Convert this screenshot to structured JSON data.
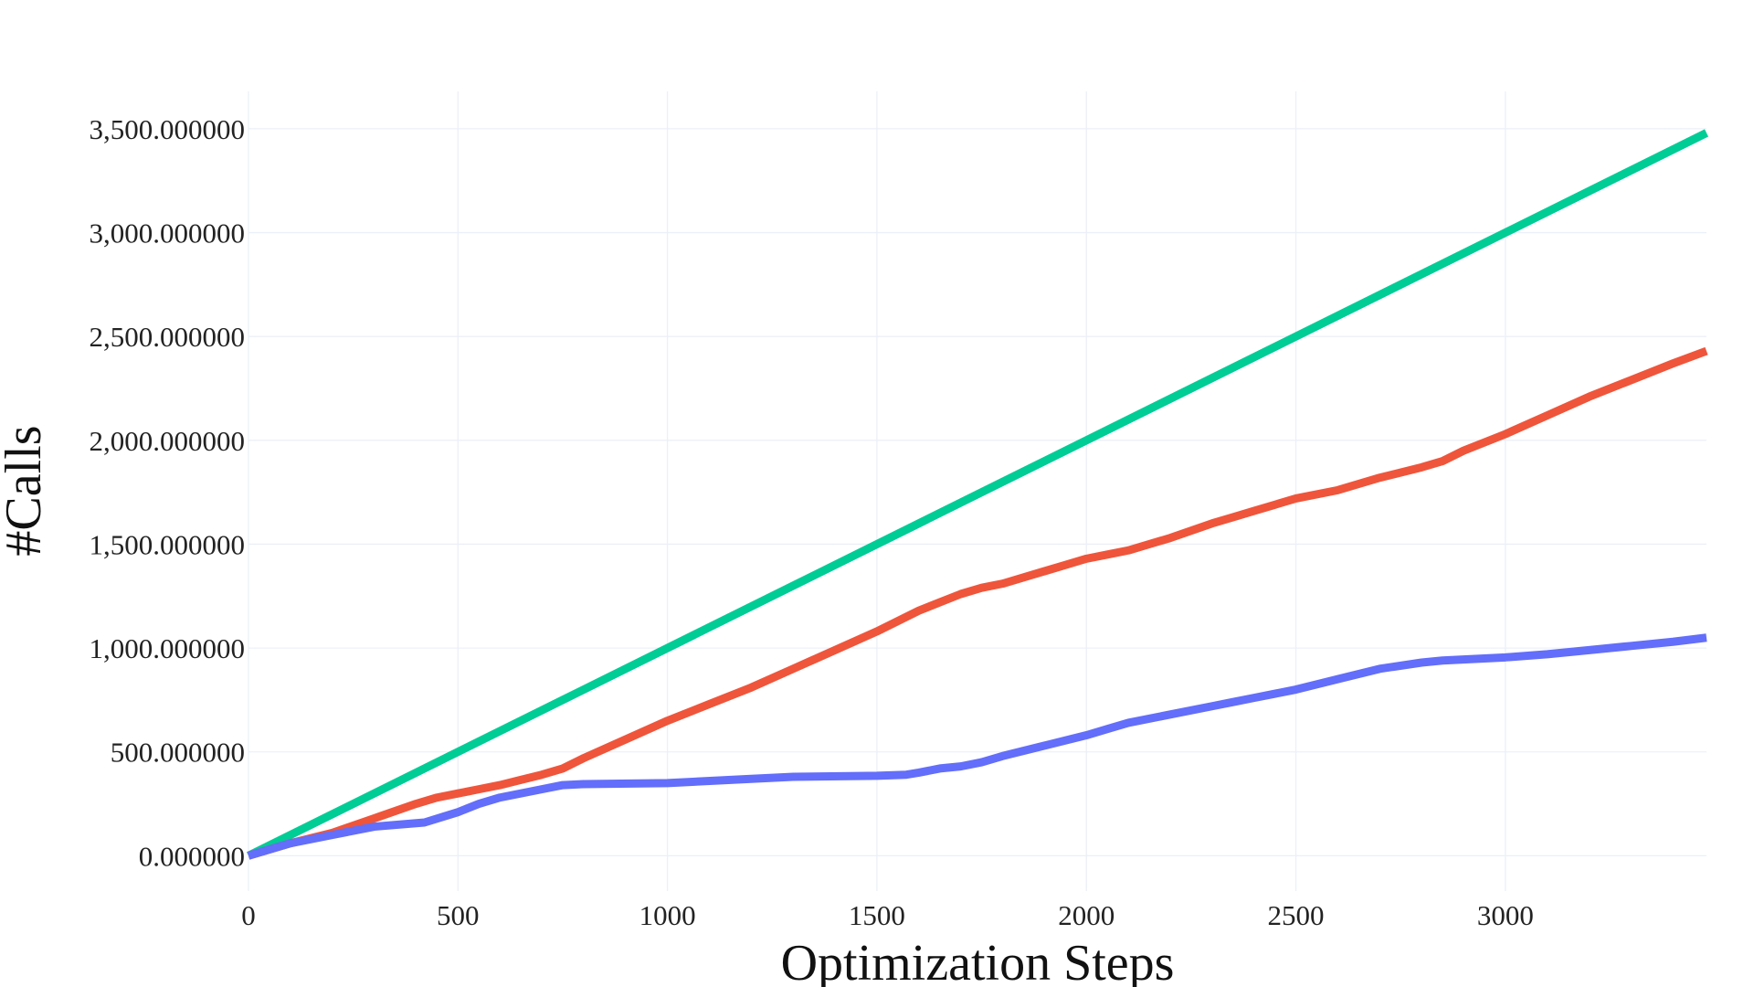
{
  "chart_data": {
    "type": "line",
    "title": "",
    "xlabel": "Optimization Steps",
    "ylabel": "#Calls",
    "xlim": [
      0,
      3480
    ],
    "ylim": [
      -170,
      3680
    ],
    "grid": true,
    "legend": "none",
    "x_ticks": [
      0,
      500,
      1000,
      1500,
      2000,
      2500,
      3000
    ],
    "x_tick_labels": [
      "0",
      "500",
      "1000",
      "1500",
      "2000",
      "2500",
      "3000"
    ],
    "y_ticks": [
      0,
      500,
      1000,
      1500,
      2000,
      2500,
      3000,
      3500
    ],
    "y_tick_labels": [
      "0.000000",
      "500.000000",
      "1,000.000000",
      "1,500.000000",
      "2,000.000000",
      "2,500.000000",
      "3,000.000000",
      "3,500.000000"
    ],
    "series": [
      {
        "color": "#00CC96",
        "x": [
          0,
          3480
        ],
        "y": [
          0,
          3480
        ]
      },
      {
        "color": "#EF553B",
        "x": [
          0,
          100,
          200,
          300,
          400,
          450,
          500,
          550,
          600,
          650,
          700,
          750,
          800,
          900,
          1000,
          1100,
          1200,
          1300,
          1400,
          1500,
          1550,
          1600,
          1650,
          1700,
          1750,
          1800,
          1900,
          1950,
          2000,
          2050,
          2100,
          2200,
          2300,
          2350,
          2400,
          2450,
          2500,
          2600,
          2700,
          2800,
          2850,
          2900,
          3000,
          3100,
          3200,
          3300,
          3400,
          3480
        ],
        "y": [
          0,
          60,
          110,
          180,
          250,
          280,
          300,
          320,
          340,
          365,
          390,
          420,
          470,
          560,
          650,
          730,
          810,
          900,
          990,
          1080,
          1130,
          1180,
          1220,
          1260,
          1290,
          1310,
          1370,
          1400,
          1430,
          1450,
          1470,
          1530,
          1600,
          1630,
          1660,
          1690,
          1720,
          1760,
          1820,
          1870,
          1900,
          1950,
          2030,
          2120,
          2210,
          2290,
          2370,
          2430
        ]
      },
      {
        "color": "#636EFA",
        "x": [
          0,
          100,
          200,
          300,
          420,
          500,
          550,
          600,
          700,
          750,
          800,
          1000,
          1200,
          1300,
          1500,
          1570,
          1600,
          1650,
          1700,
          1750,
          1800,
          1900,
          2000,
          2050,
          2100,
          2200,
          2300,
          2350,
          2400,
          2500,
          2600,
          2700,
          2800,
          2850,
          2900,
          3000,
          3100,
          3200,
          3300,
          3400,
          3480
        ],
        "y": [
          0,
          60,
          100,
          140,
          160,
          210,
          250,
          280,
          320,
          340,
          345,
          350,
          370,
          380,
          385,
          390,
          400,
          420,
          430,
          450,
          480,
          530,
          580,
          610,
          640,
          680,
          720,
          740,
          760,
          800,
          850,
          900,
          930,
          940,
          945,
          955,
          970,
          990,
          1010,
          1030,
          1050
        ]
      }
    ]
  }
}
